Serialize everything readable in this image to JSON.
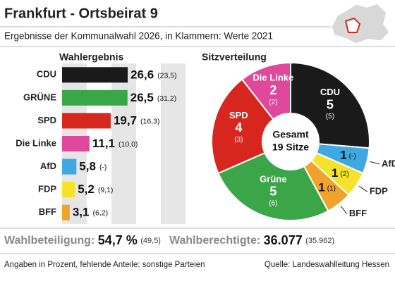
{
  "title": "Frankfurt - Ortsbeirat 9",
  "subtitle": "Ergebnisse der Kommunalwahl 2026, in Klammern: Werte 2021",
  "chart_data": [
    {
      "type": "bar",
      "title": "Wahlergebnis",
      "categories": [
        "CDU",
        "GRÜNE",
        "SPD",
        "Die Linke",
        "AfD",
        "FDP",
        "BFF"
      ],
      "values": [
        26.6,
        26.5,
        19.7,
        11.1,
        5.8,
        5.2,
        3.1
      ],
      "value_labels": [
        "26,6",
        "26,5",
        "19,7",
        "11,1",
        "5,8",
        "5,2",
        "3,1"
      ],
      "previous_labels": [
        "(23,5)",
        "(31,2)",
        "(16,3)",
        "(10,0)",
        "(-)",
        "(9,1)",
        "(6,2)"
      ],
      "colors": [
        "#1a1a1a",
        "#3aa648",
        "#d7261e",
        "#e0489b",
        "#3fa8e0",
        "#f5e22a",
        "#f0a32a"
      ],
      "xlim": [
        0,
        50
      ],
      "xticks": [
        0,
        10,
        20,
        30,
        40,
        50
      ]
    },
    {
      "type": "donut",
      "title": "Sitzverteilung",
      "categories": [
        "CDU",
        "AfD",
        "FDP",
        "BFF",
        "Grüne",
        "SPD",
        "Die Linke"
      ],
      "values": [
        5,
        1,
        1,
        1,
        5,
        4,
        2
      ],
      "previous_labels": [
        "(5)",
        "(-)",
        "(2)",
        "(1)",
        "(6)",
        "(3)",
        "(2)"
      ],
      "colors": [
        "#1a1a1a",
        "#3fa8e0",
        "#f5e22a",
        "#f0a32a",
        "#3aa648",
        "#d7261e",
        "#e0489b"
      ],
      "label_colors": [
        "#ffffff",
        "#111111",
        "#111111",
        "#111111",
        "#ffffff",
        "#ffffff",
        "#ffffff"
      ],
      "center_title": "Gesamt",
      "center_label": "19 Sitze"
    }
  ],
  "turnout": {
    "label": "Wahlbeteiligung:",
    "value": "54,7 %",
    "previous": "(49,5)"
  },
  "electorate": {
    "label": "Wahlberechtigte:",
    "value": "36.077",
    "previous": "(35.962)"
  },
  "footer": {
    "note": "Angaben in Prozent, fehlende Anteile: sonstige Parteien",
    "source": "Quelle: Landeswahlleitung Hessen"
  }
}
